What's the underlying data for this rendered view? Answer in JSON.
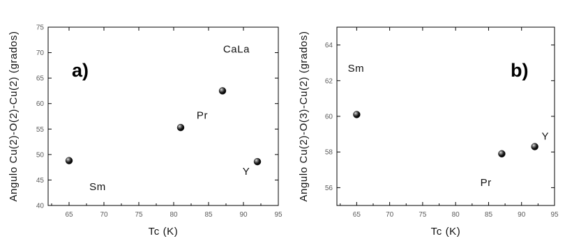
{
  "chart_data": [
    {
      "panel_label": "a)",
      "type": "scatter",
      "xlabel": "Tc (K)",
      "ylabel": "Angulo Cu(2)-O(2)-Cu(2) (grados)",
      "xlim": [
        62,
        95
      ],
      "ylim": [
        40,
        75
      ],
      "xticks": [
        "65",
        "70",
        "75",
        "80",
        "85",
        "90",
        "95"
      ],
      "yticks": [
        "40",
        "45",
        "50",
        "55",
        "60",
        "65",
        "70",
        "75"
      ],
      "x": [
        65,
        81,
        87,
        92
      ],
      "y": [
        48.8,
        55.3,
        62.5,
        48.6
      ],
      "annotations": [
        {
          "text": "Sm",
          "x": 69.1,
          "y": 43.0
        },
        {
          "text": "Pr",
          "x": 84.1,
          "y": 57.0
        },
        {
          "text": "CaLa",
          "x": 89.0,
          "y": 70.0
        },
        {
          "text": "Y",
          "x": 90.4,
          "y": 46.0
        }
      ],
      "grid": false,
      "marker_color": "#000000"
    },
    {
      "panel_label": "b)",
      "type": "scatter",
      "xlabel": "Tc (K)",
      "ylabel": "Angulo Cu(2)-O(3)-Cu(2) (grados)",
      "xlim": [
        62,
        95
      ],
      "ylim": [
        55,
        65
      ],
      "xticks": [
        "65",
        "70",
        "75",
        "80",
        "85",
        "90",
        "95"
      ],
      "yticks": [
        "56",
        "58",
        "60",
        "62",
        "64"
      ],
      "x": [
        65,
        87,
        92
      ],
      "y": [
        60.1,
        57.9,
        58.3
      ],
      "annotations": [
        {
          "text": "Sm",
          "x": 64.9,
          "y": 62.5
        },
        {
          "text": "Pr",
          "x": 84.6,
          "y": 56.1
        },
        {
          "text": "Y",
          "x": 93.6,
          "y": 58.7
        }
      ],
      "grid": false,
      "marker_color": "#000000"
    }
  ]
}
